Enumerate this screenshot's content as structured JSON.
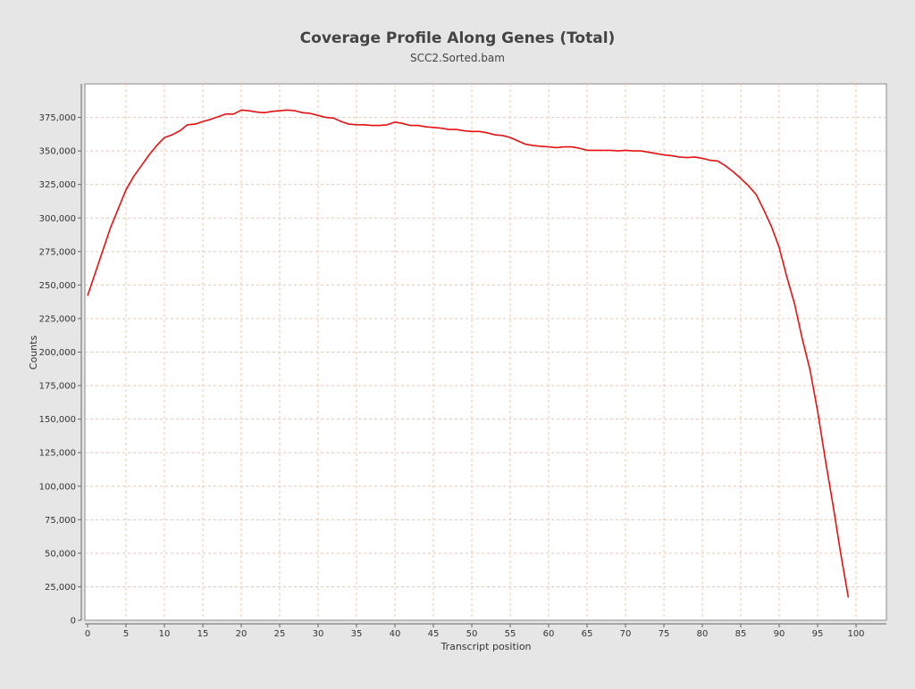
{
  "chart_data": {
    "type": "line",
    "title": "Coverage Profile Along Genes (Total)",
    "subtitle": "SCC2.Sorted.bam",
    "xlabel": "Transcript position",
    "ylabel": "Counts",
    "xlim": [
      0,
      104
    ],
    "ylim": [
      0,
      400000
    ],
    "x_ticks": [
      0,
      5,
      10,
      15,
      20,
      25,
      30,
      35,
      40,
      45,
      50,
      55,
      60,
      65,
      70,
      75,
      80,
      85,
      90,
      95,
      100
    ],
    "y_ticks": [
      0,
      25000,
      50000,
      75000,
      100000,
      125000,
      150000,
      175000,
      200000,
      225000,
      250000,
      275000,
      300000,
      325000,
      350000,
      375000
    ],
    "x_tick_labels": [
      "0",
      "5",
      "10",
      "15",
      "20",
      "25",
      "30",
      "35",
      "40",
      "45",
      "50",
      "55",
      "60",
      "65",
      "70",
      "75",
      "80",
      "85",
      "90",
      "95",
      "100"
    ],
    "y_tick_labels": [
      "0",
      "25,000",
      "50,000",
      "75,000",
      "100,000",
      "125,000",
      "150,000",
      "175,000",
      "200,000",
      "225,000",
      "250,000",
      "275,000",
      "300,000",
      "325,000",
      "350,000",
      "375,000"
    ],
    "grid": true,
    "colors": {
      "line": "#e81010",
      "grid": "#f2c4a6",
      "plot_bg": "#ffffff",
      "page_bg": "#e6e6e6"
    },
    "series": [
      {
        "x": [
          0,
          1,
          2,
          3,
          4,
          5,
          6,
          7,
          8,
          9,
          10,
          11,
          12,
          13,
          14,
          15,
          16,
          17,
          18,
          19,
          20,
          21,
          22,
          23,
          24,
          25,
          26,
          27,
          28,
          29,
          30,
          31,
          32,
          33,
          34,
          35,
          36,
          37,
          38,
          39,
          40,
          41,
          42,
          43,
          44,
          45,
          46,
          47,
          48,
          49,
          50,
          51,
          52,
          53,
          54,
          55,
          56,
          57,
          58,
          59,
          60,
          61,
          62,
          63,
          64,
          65,
          66,
          67,
          68,
          69,
          70,
          71,
          72,
          73,
          74,
          75,
          76,
          77,
          78,
          79,
          80,
          81,
          82,
          83,
          84,
          85,
          86,
          87,
          88,
          89,
          90,
          91,
          92,
          93,
          94,
          95,
          96,
          97,
          98,
          99
        ],
        "values": [
          242000,
          259000,
          276000,
          293000,
          307000,
          321000,
          331000,
          339000,
          347000,
          354000,
          360000,
          362000,
          365000,
          369500,
          370000,
          372000,
          373500,
          375500,
          377500,
          377500,
          380500,
          380000,
          379000,
          378500,
          379500,
          380000,
          380500,
          380000,
          378500,
          378000,
          376500,
          375000,
          374500,
          372000,
          370000,
          369500,
          369500,
          369000,
          369000,
          369500,
          371500,
          370500,
          369000,
          369000,
          368000,
          367500,
          367000,
          366000,
          366000,
          365000,
          364500,
          364500,
          363500,
          362000,
          361500,
          360000,
          357500,
          355000,
          354000,
          353500,
          353000,
          352500,
          353000,
          353000,
          352000,
          350500,
          350500,
          350500,
          350500,
          350000,
          350500,
          350000,
          350000,
          349000,
          348000,
          347000,
          346500,
          345500,
          345000,
          345500,
          344500,
          343000,
          342500,
          339000,
          334500,
          329500,
          324000,
          317500,
          306000,
          293500,
          278000,
          256000,
          236000,
          210000,
          187000,
          156000,
          120000,
          86000,
          50000,
          17000
        ]
      }
    ]
  }
}
